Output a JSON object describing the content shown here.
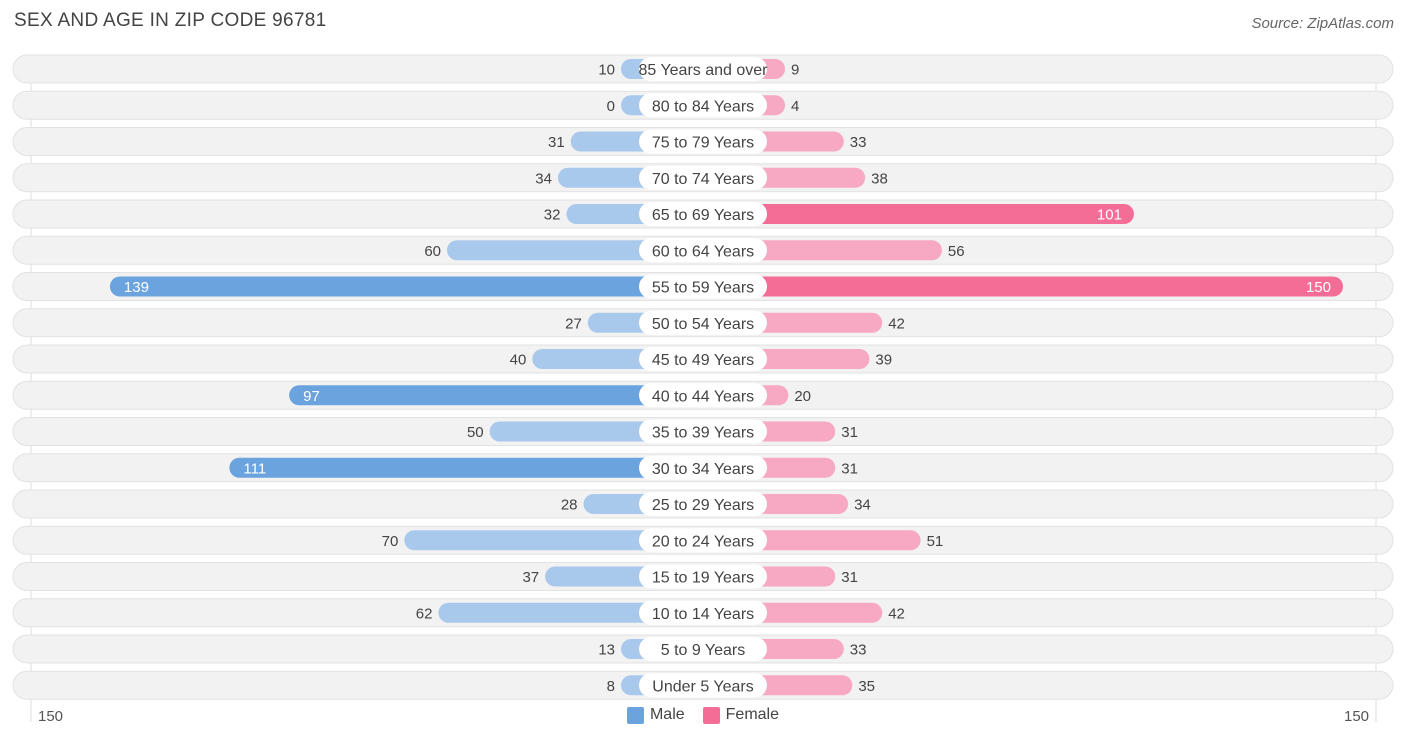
{
  "header": {
    "title": "SEX AND AGE IN ZIP CODE 96781",
    "source": "Source: ZipAtlas.com"
  },
  "axis": {
    "left_label": "150",
    "right_label": "150"
  },
  "legend": {
    "male": {
      "label": "Male",
      "color": "#6aa3de"
    },
    "female": {
      "label": "Female",
      "color": "#f46d97"
    }
  },
  "chart_data": {
    "type": "bar",
    "orientation": "horizontal-diverging",
    "categories": [
      "85 Years and over",
      "80 to 84 Years",
      "75 to 79 Years",
      "70 to 74 Years",
      "65 to 69 Years",
      "60 to 64 Years",
      "55 to 59 Years",
      "50 to 54 Years",
      "45 to 49 Years",
      "40 to 44 Years",
      "35 to 39 Years",
      "30 to 34 Years",
      "25 to 29 Years",
      "20 to 24 Years",
      "15 to 19 Years",
      "10 to 14 Years",
      "5 to 9 Years",
      "Under 5 Years"
    ],
    "series": [
      {
        "name": "Male",
        "values": [
          10,
          0,
          31,
          34,
          32,
          60,
          139,
          27,
          40,
          97,
          50,
          111,
          28,
          70,
          37,
          62,
          13,
          8
        ]
      },
      {
        "name": "Female",
        "values": [
          9,
          4,
          33,
          38,
          101,
          56,
          150,
          42,
          39,
          20,
          31,
          31,
          34,
          51,
          31,
          42,
          33,
          35
        ]
      }
    ],
    "xlim": [
      -150,
      150
    ],
    "colors": {
      "male_light": "#a9c9ec",
      "male_dark": "#6aa3de",
      "female_light": "#f7a8c2",
      "female_dark": "#f46d97"
    }
  }
}
